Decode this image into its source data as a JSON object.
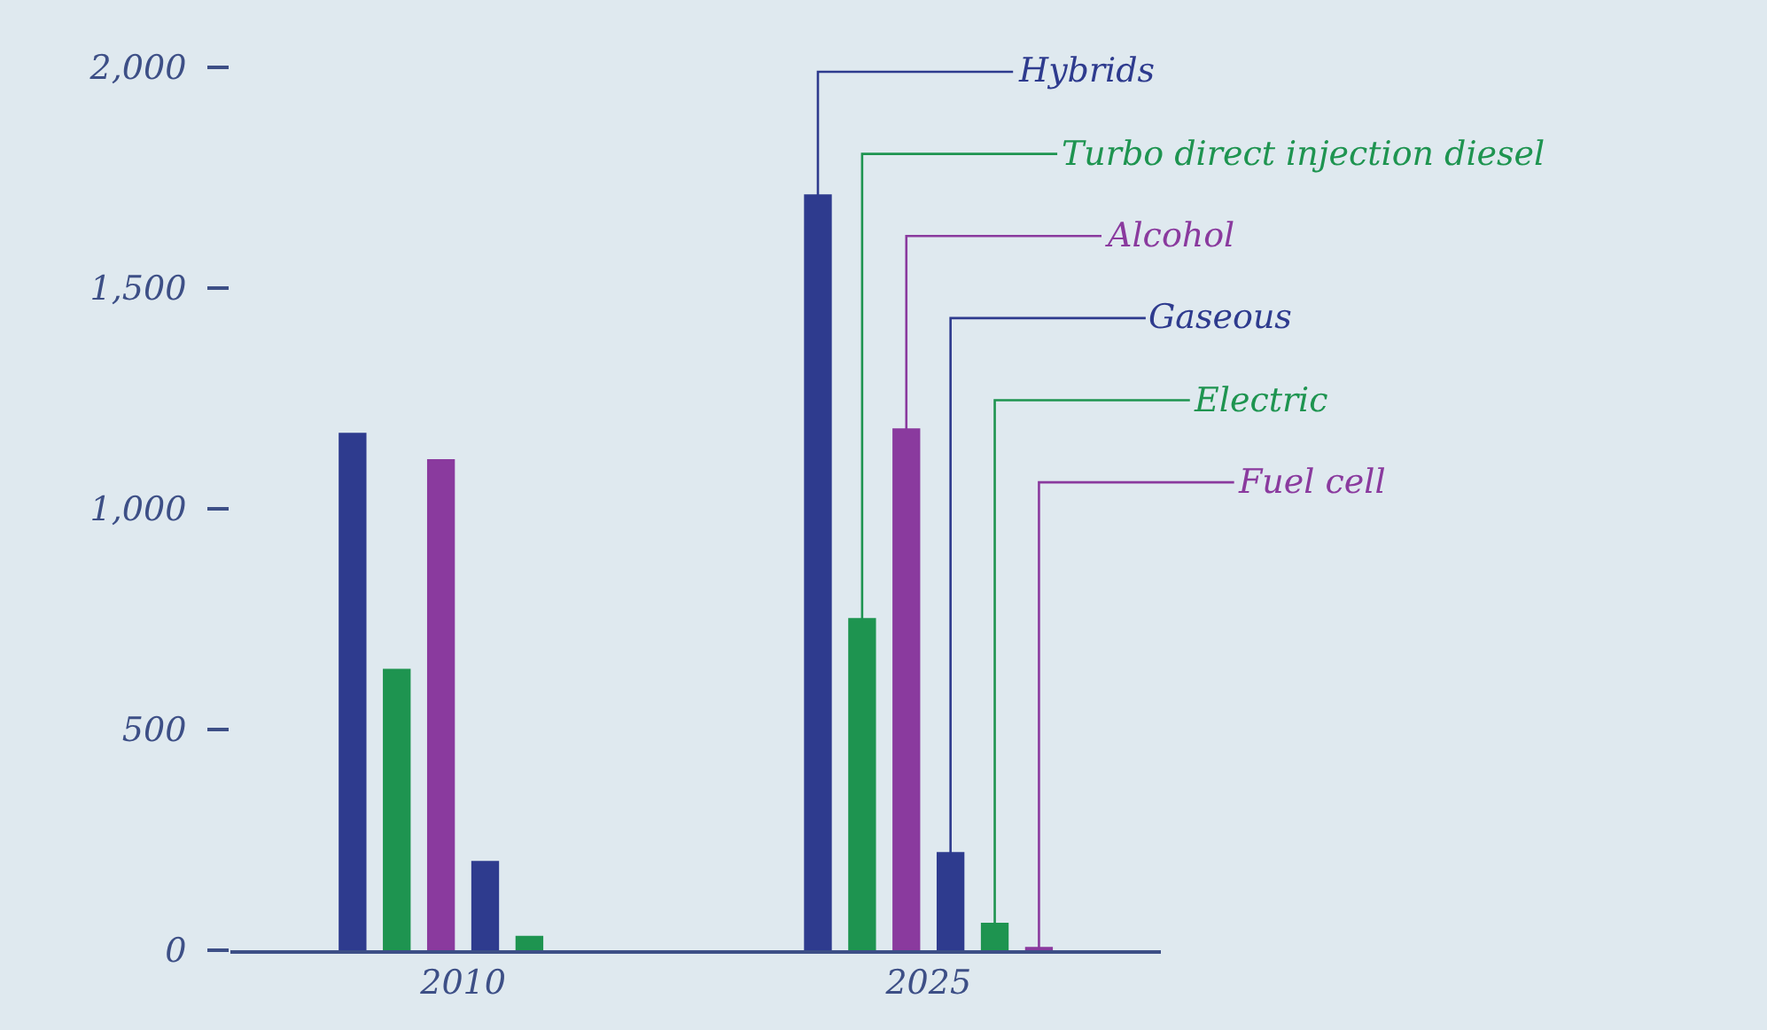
{
  "chart_data": {
    "type": "bar",
    "categories": [
      "2010",
      "2025"
    ],
    "series": [
      {
        "name": "Hybrids",
        "color": "#2e3b8e",
        "values": [
          1170,
          1710
        ]
      },
      {
        "name": "Turbo direct injection diesel",
        "color": "#1e9450",
        "values": [
          635,
          750
        ]
      },
      {
        "name": "Alcohol",
        "color": "#8a3a9e",
        "values": [
          1110,
          1180
        ]
      },
      {
        "name": "Gaseous",
        "color": "#2e3b8e",
        "values": [
          200,
          220
        ]
      },
      {
        "name": "Electric",
        "color": "#1e9450",
        "values": [
          30,
          60
        ]
      },
      {
        "name": "Fuel cell",
        "color": "#8a3a9e",
        "values": [
          null,
          5
        ]
      }
    ],
    "ylim": [
      0,
      2000
    ],
    "yticks": [
      {
        "value": 0,
        "label": "0"
      },
      {
        "value": 500,
        "label": "500"
      },
      {
        "value": 1000,
        "label": "1,000"
      },
      {
        "value": 1500,
        "label": "1,500"
      },
      {
        "value": 2000,
        "label": "2,000"
      }
    ],
    "grid": false,
    "legend": false
  }
}
